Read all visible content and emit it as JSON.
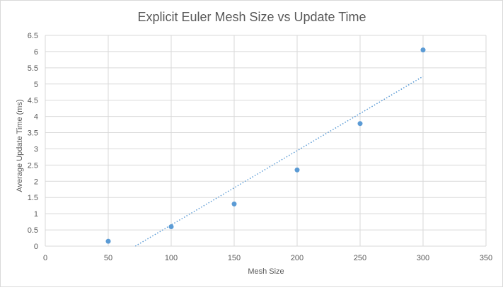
{
  "chart_data": {
    "type": "scatter",
    "title": "Explicit Euler Mesh Size vs Update Time",
    "xlabel": "Mesh Size",
    "ylabel": "Average Update Time  (ms)",
    "xlim": [
      0,
      350
    ],
    "ylim": [
      0,
      6.5
    ],
    "xticks": [
      0,
      50,
      100,
      150,
      200,
      250,
      300,
      350
    ],
    "yticks": [
      0,
      0.5,
      1,
      1.5,
      2,
      2.5,
      3,
      3.5,
      4,
      4.5,
      5,
      5.5,
      6,
      6.5
    ],
    "grid": true,
    "legend": "none",
    "series": [
      {
        "x": [
          50,
          100,
          150,
          200,
          250,
          300
        ],
        "y": [
          0.15,
          0.6,
          1.3,
          2.35,
          3.78,
          6.05
        ],
        "color": "#5b9bd5",
        "trendline": "linear"
      }
    ]
  }
}
